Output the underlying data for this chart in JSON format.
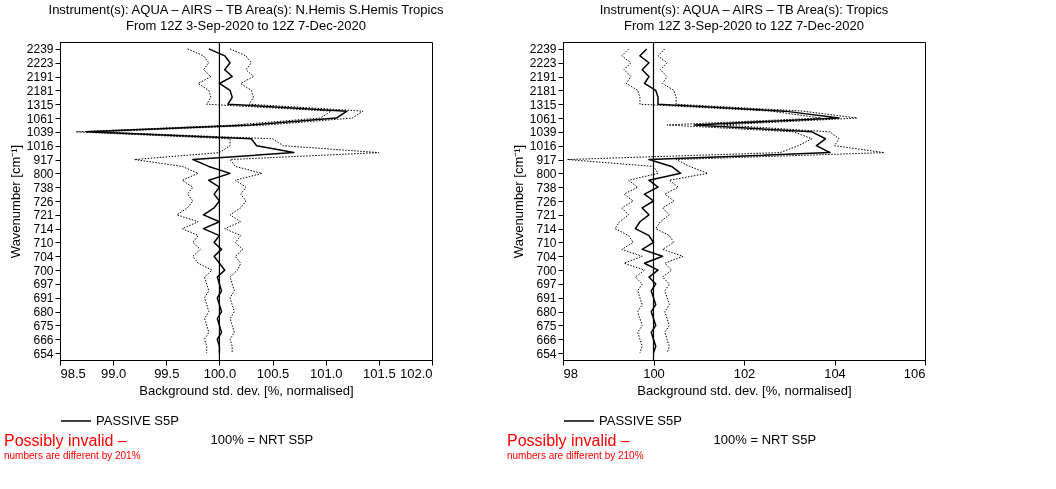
{
  "chart_data": [
    {
      "type": "line",
      "orientation": "horizontal",
      "title": "Instrument(s): AQUA – AIRS – TB      Area(s): N.Hemis S.Hemis Tropics",
      "subtitle": "From 12Z  3-Sep-2020 to 12Z  7-Dec-2020",
      "xlabel": "Background std. dev. [%, normalised]",
      "ylabel": "Wavenumber [cm⁻¹]",
      "categories": [
        "2239",
        null,
        "2223",
        null,
        "2191",
        null,
        "2181",
        null,
        "1315",
        null,
        "1061",
        null,
        "1039",
        null,
        "1016",
        null,
        "917",
        null,
        "800",
        null,
        "738",
        null,
        "726",
        null,
        "721",
        null,
        "714",
        null,
        "710",
        null,
        "704",
        null,
        "700",
        null,
        "697",
        null,
        "691",
        null,
        "680",
        null,
        "675",
        null,
        "666",
        null,
        "654"
      ],
      "xlim": [
        98.5,
        102.0
      ],
      "xticks": [
        {
          "value": 98.5,
          "label": "98.5"
        },
        {
          "value": 99,
          "label": "99.0"
        },
        {
          "value": 99.5,
          "label": "99.5"
        },
        {
          "value": 100,
          "label": "100.0"
        },
        {
          "value": 100.5,
          "label": "100.5"
        },
        {
          "value": 101,
          "label": "101.0"
        },
        {
          "value": 101.5,
          "label": "101.5"
        },
        {
          "value": 102,
          "label": "102.0"
        }
      ],
      "series": [
        {
          "name": "PASSIVE S5P",
          "color": "#000000",
          "line_style": "solid",
          "values": [
            99.9,
            100.05,
            100.1,
            100.05,
            100.12,
            100.0,
            100.1,
            100.12,
            100.08,
            101.2,
            101.1,
            100.3,
            98.75,
            100.3,
            100.35,
            100.7,
            99.75,
            99.9,
            100.1,
            99.9,
            100.0,
            99.95,
            100.0,
            99.95,
            99.85,
            100.0,
            99.85,
            100.0,
            99.95,
            100.02,
            99.95,
            100.0,
            100.05,
            99.98,
            100.0,
            100.02,
            99.98,
            100.0,
            100.02,
            99.98,
            100.0,
            100.02,
            99.98,
            100.0,
            100.0
          ]
        },
        {
          "color": "#000000",
          "line_style": "dotted",
          "values": [
            99.7,
            99.85,
            99.9,
            99.85,
            99.92,
            99.8,
            99.9,
            99.92,
            99.88,
            101.05,
            100.95,
            100.15,
            98.65,
            100.1,
            100.1,
            100.0,
            99.2,
            99.65,
            99.8,
            99.65,
            99.75,
            99.7,
            99.75,
            99.7,
            99.6,
            99.8,
            99.65,
            99.8,
            99.75,
            99.82,
            99.75,
            99.8,
            99.93,
            99.86,
            99.88,
            99.9,
            99.86,
            99.88,
            99.9,
            99.86,
            99.88,
            99.9,
            99.86,
            99.88,
            99.88
          ]
        },
        {
          "color": "#000000",
          "line_style": "dotted",
          "values": [
            100.1,
            100.25,
            100.3,
            100.25,
            100.32,
            100.2,
            100.3,
            100.32,
            100.28,
            101.35,
            101.25,
            100.45,
            98.85,
            100.5,
            100.6,
            101.5,
            100.1,
            100.15,
            100.4,
            100.15,
            100.25,
            100.2,
            100.25,
            100.2,
            100.1,
            100.2,
            100.05,
            100.2,
            100.15,
            100.22,
            100.15,
            100.2,
            100.17,
            100.1,
            100.12,
            100.14,
            100.1,
            100.12,
            100.14,
            100.1,
            100.12,
            100.14,
            100.1,
            100.12,
            100.12
          ]
        }
      ],
      "ref_lines": [
        {
          "axis": "x",
          "value": 100,
          "color": "#000000"
        }
      ],
      "legend": "bottom",
      "annotations": [
        "Possibly invalid –",
        "numbers are different by 201%",
        "100% = NRT S5P"
      ]
    },
    {
      "type": "line",
      "orientation": "horizontal",
      "title": "Instrument(s): AQUA – AIRS – TB      Area(s): Tropics",
      "subtitle": "From 12Z  3-Sep-2020 to 12Z  7-Dec-2020",
      "xlabel": "Background std. dev. [%, normalised]",
      "ylabel": "Wavenumber [cm⁻¹]",
      "categories": [
        "2239",
        null,
        "2223",
        null,
        "2191",
        null,
        "2181",
        null,
        "1315",
        null,
        "1061",
        null,
        "1039",
        null,
        "1016",
        null,
        "917",
        null,
        "800",
        null,
        "738",
        null,
        "726",
        null,
        "721",
        null,
        "714",
        null,
        "710",
        null,
        "704",
        null,
        "700",
        null,
        "697",
        null,
        "691",
        null,
        "680",
        null,
        "675",
        null,
        "666",
        null,
        "654"
      ],
      "xlim": [
        98,
        106
      ],
      "xticks": [
        98,
        100,
        102,
        104,
        106
      ],
      "series": [
        {
          "name": "PASSIVE S5P",
          "color": "#000000",
          "line_style": "solid",
          "values": [
            99.85,
            99.7,
            99.9,
            99.75,
            99.9,
            99.8,
            100.05,
            100.1,
            100.1,
            102.9,
            104.1,
            100.9,
            103.5,
            103.8,
            103.6,
            103.9,
            99.9,
            100.4,
            100.6,
            99.9,
            100.1,
            99.8,
            100.0,
            99.75,
            99.9,
            99.7,
            99.6,
            99.9,
            100.0,
            99.75,
            100.2,
            99.8,
            100.1,
            99.9,
            100.05,
            99.95,
            100.0,
            100.05,
            99.95,
            100.0,
            100.05,
            99.95,
            100.0,
            100.05,
            100.0
          ]
        },
        {
          "color": "#000000",
          "line_style": "dotted",
          "values": [
            99.45,
            99.3,
            99.5,
            99.35,
            99.5,
            99.4,
            99.65,
            99.7,
            99.7,
            102.6,
            103.7,
            100.3,
            103.1,
            103.5,
            103.2,
            102.8,
            98.1,
            100.0,
            100.1,
            99.45,
            99.65,
            99.35,
            99.55,
            99.3,
            99.45,
            99.25,
            99.15,
            99.45,
            99.55,
            99.3,
            99.75,
            99.35,
            99.8,
            99.6,
            99.75,
            99.65,
            99.7,
            99.75,
            99.65,
            99.7,
            99.75,
            99.65,
            99.7,
            99.75,
            99.7
          ]
        },
        {
          "color": "#000000",
          "line_style": "dotted",
          "values": [
            100.25,
            100.1,
            100.3,
            100.15,
            100.3,
            100.2,
            100.45,
            100.5,
            100.5,
            103.3,
            104.5,
            101.5,
            103.9,
            104.1,
            104.0,
            105.1,
            100.5,
            100.8,
            101.2,
            100.35,
            100.55,
            100.25,
            100.45,
            100.2,
            100.35,
            100.15,
            100.05,
            100.35,
            100.45,
            100.2,
            100.65,
            100.25,
            100.4,
            100.2,
            100.35,
            100.25,
            100.3,
            100.35,
            100.25,
            100.3,
            100.35,
            100.25,
            100.3,
            100.35,
            100.3
          ]
        }
      ],
      "ref_lines": [
        {
          "axis": "x",
          "value": 100,
          "color": "#000000"
        }
      ],
      "legend": "bottom",
      "annotations": [
        "Possibly invalid –",
        "numbers are different by 210%",
        "100% = NRT S5P"
      ]
    }
  ]
}
